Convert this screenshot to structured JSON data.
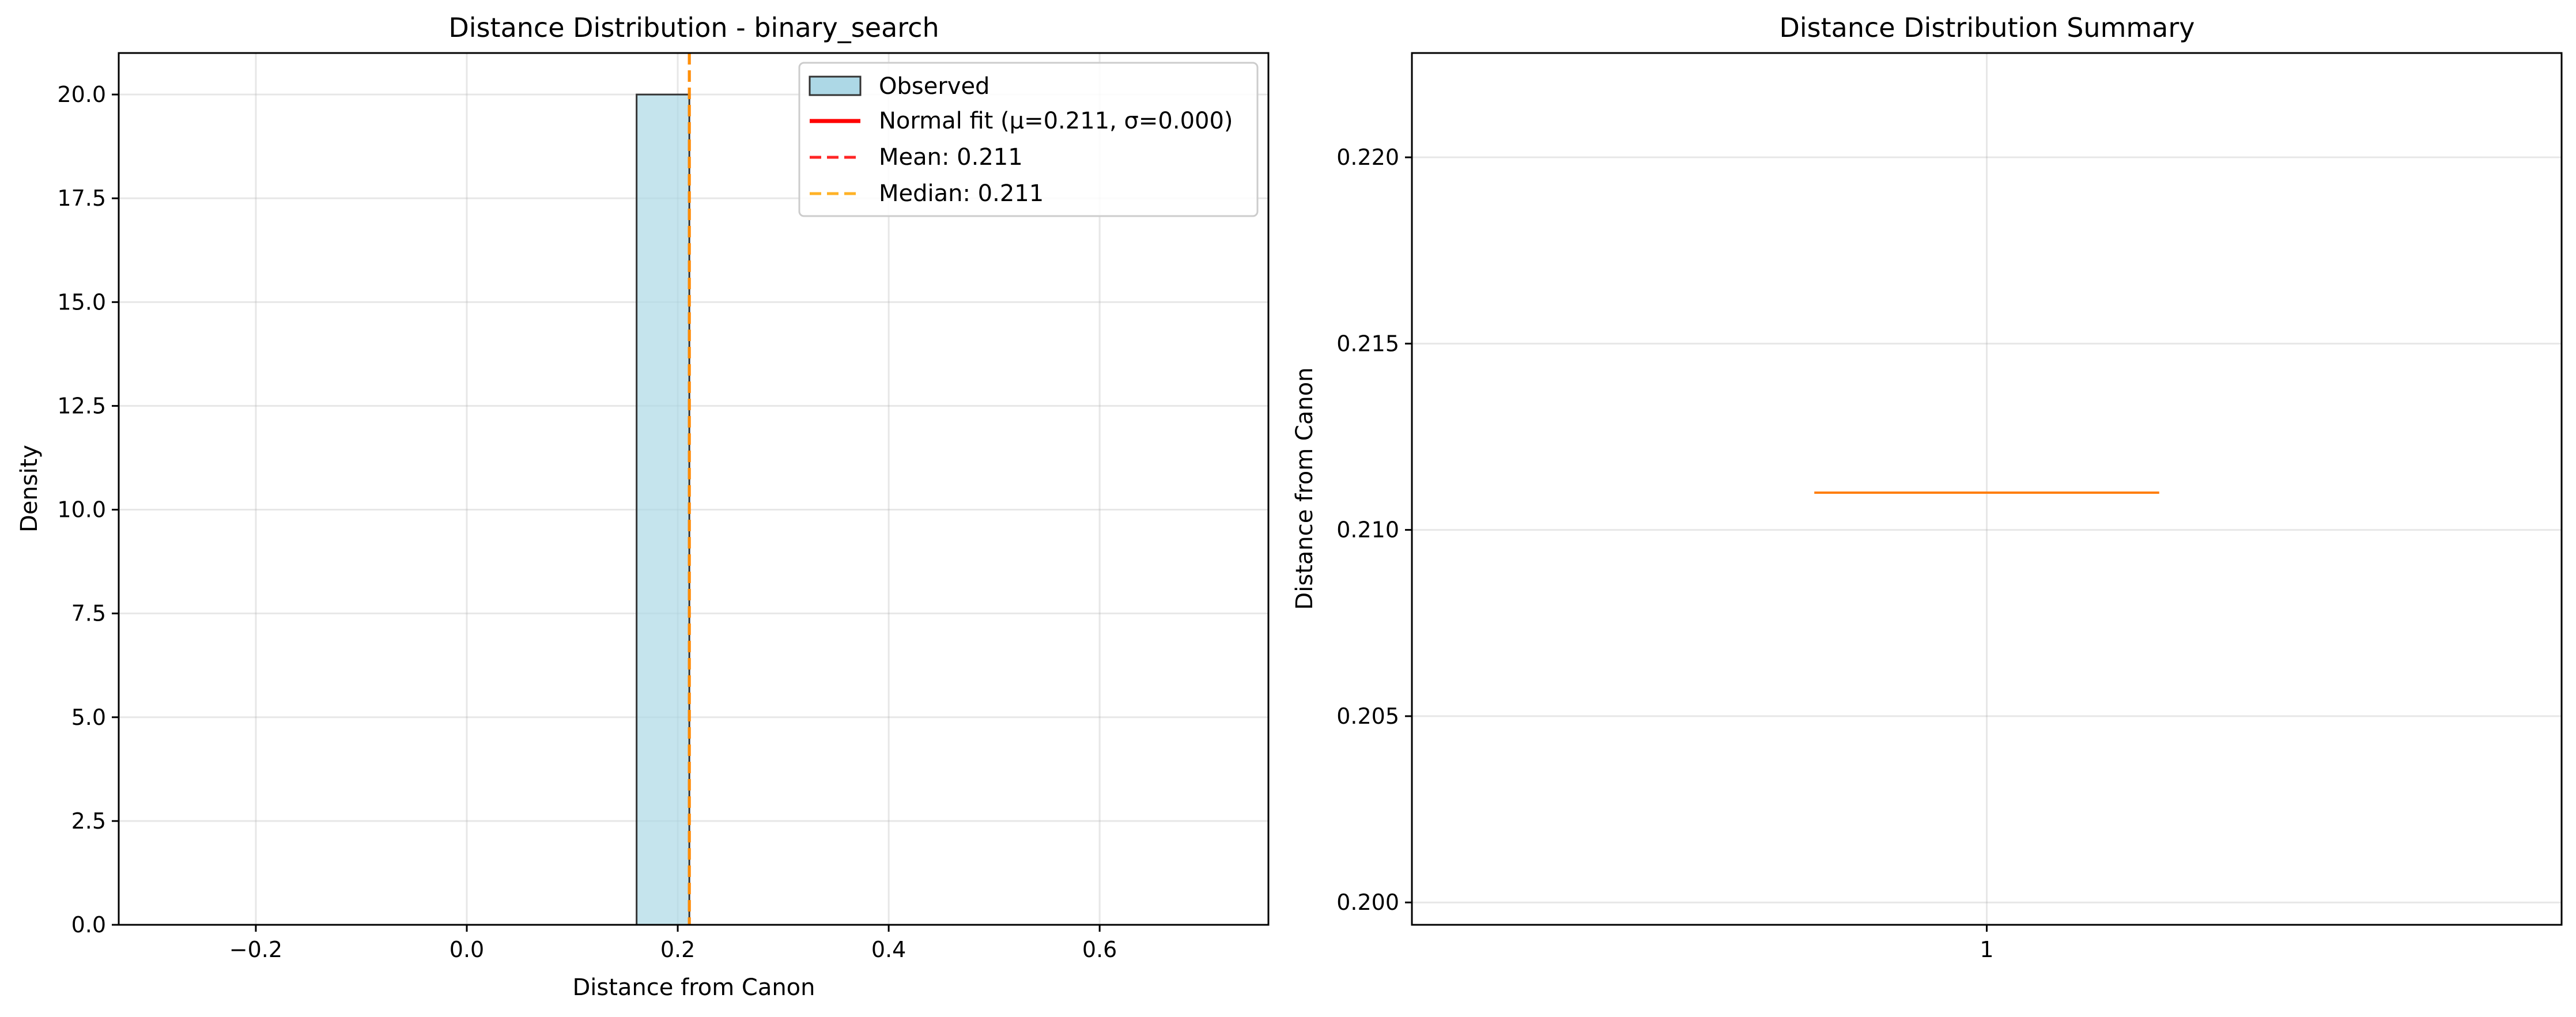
{
  "chart_data": [
    {
      "type": "bar",
      "title": "Distance Distribution - binary_search",
      "xlabel": "Distance from Canon",
      "ylabel": "Density",
      "xlim": [
        -0.33,
        0.76
      ],
      "ylim": [
        0,
        21
      ],
      "x_ticks": [
        -0.2,
        0.0,
        0.2,
        0.4,
        0.6
      ],
      "x_tick_labels": [
        "−0.2",
        "0.0",
        "0.2",
        "0.4",
        "0.6"
      ],
      "y_ticks": [
        0,
        2.5,
        5,
        7.5,
        10,
        12.5,
        15,
        17.5,
        20
      ],
      "y_tick_labels": [
        "0.0",
        "2.5",
        "5.0",
        "7.5",
        "10.0",
        "12.5",
        "15.0",
        "17.5",
        "20.0"
      ],
      "grid": true,
      "legend_position": "top-right",
      "histogram": {
        "name": "Observed",
        "color": "#add8e6",
        "edge_color": "#333333",
        "bin_edges": [
          -0.289,
          -0.239,
          -0.189,
          -0.139,
          -0.089,
          -0.039,
          0.011,
          0.061,
          0.111,
          0.161,
          0.211,
          0.261,
          0.311,
          0.361,
          0.411,
          0.461,
          0.511,
          0.561,
          0.611,
          0.661,
          0.711
        ],
        "values": [
          0,
          0,
          0,
          0,
          0,
          0,
          0,
          0,
          0,
          20,
          0,
          0,
          0,
          0,
          0,
          0,
          0,
          0,
          0,
          0
        ]
      },
      "lines": [
        {
          "name": "Normal fit (μ=0.211, σ=0.000)",
          "color": "#ff0000",
          "style": "solid",
          "x": 0.211
        },
        {
          "name": "Mean: 0.211",
          "color": "#ff0000",
          "style": "dashed",
          "x": 0.211
        },
        {
          "name": "Median: 0.211",
          "color": "#ffa500",
          "style": "dashed",
          "x": 0.211
        }
      ]
    },
    {
      "type": "box",
      "title": "Distance Distribution Summary",
      "xlabel": "",
      "ylabel": "Distance from Canon",
      "ylim": [
        0.1994,
        0.2228
      ],
      "y_ticks": [
        0.2,
        0.205,
        0.21,
        0.215,
        0.22
      ],
      "y_tick_labels": [
        "0.200",
        "0.205",
        "0.210",
        "0.215",
        "0.220"
      ],
      "categories": [
        "1"
      ],
      "grid": true,
      "boxes": [
        {
          "category": "1",
          "min": 0.211,
          "q1": 0.211,
          "median": 0.211,
          "q3": 0.211,
          "max": 0.211,
          "median_color": "#ff7f0e"
        }
      ]
    }
  ]
}
